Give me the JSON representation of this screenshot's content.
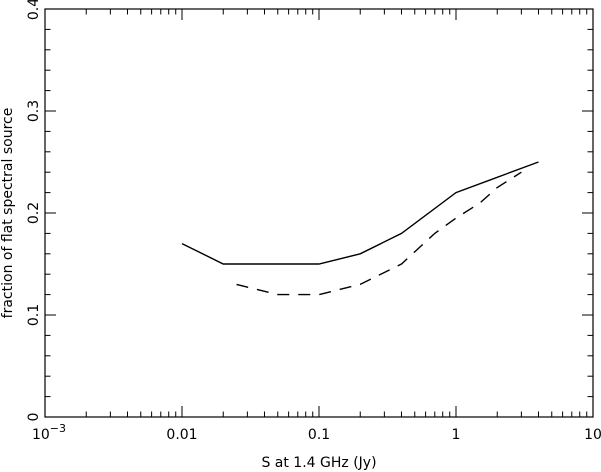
{
  "chart_data": {
    "type": "line",
    "title": "",
    "xlabel": "S at 1.4 GHz (Jy)",
    "ylabel": "fraction of flat spectral source",
    "xscale": "log",
    "xlim": [
      0.001,
      10
    ],
    "ylim": [
      0,
      0.4
    ],
    "grid": false,
    "legend": "none",
    "x_ticks": [
      {
        "value": 0.001,
        "base": "10",
        "exp": "−3"
      },
      {
        "value": 0.01,
        "label": "0.01"
      },
      {
        "value": 0.1,
        "label": "0.1"
      },
      {
        "value": 1,
        "label": "1"
      },
      {
        "value": 10,
        "label": "10"
      }
    ],
    "y_ticks": [
      {
        "value": 0,
        "label": "0"
      },
      {
        "value": 0.1,
        "label": "0.1"
      },
      {
        "value": 0.2,
        "label": "0.2"
      },
      {
        "value": 0.3,
        "label": "0.3"
      },
      {
        "value": 0.4,
        "label": "0.4"
      }
    ],
    "series": [
      {
        "style": "solid",
        "points": [
          [
            0.01,
            0.17
          ],
          [
            0.02,
            0.15
          ],
          [
            0.05,
            0.15
          ],
          [
            0.1,
            0.15
          ],
          [
            0.2,
            0.16
          ],
          [
            0.4,
            0.18
          ],
          [
            1.0,
            0.22
          ],
          [
            2.0,
            0.235
          ],
          [
            4.0,
            0.25
          ]
        ]
      },
      {
        "style": "dashed",
        "points": [
          [
            0.025,
            0.13
          ],
          [
            0.05,
            0.12
          ],
          [
            0.1,
            0.12
          ],
          [
            0.2,
            0.13
          ],
          [
            0.4,
            0.15
          ],
          [
            0.7,
            0.18
          ],
          [
            1.0,
            0.195
          ],
          [
            1.5,
            0.21
          ],
          [
            2.0,
            0.225
          ],
          [
            3.0,
            0.24
          ]
        ]
      }
    ]
  }
}
